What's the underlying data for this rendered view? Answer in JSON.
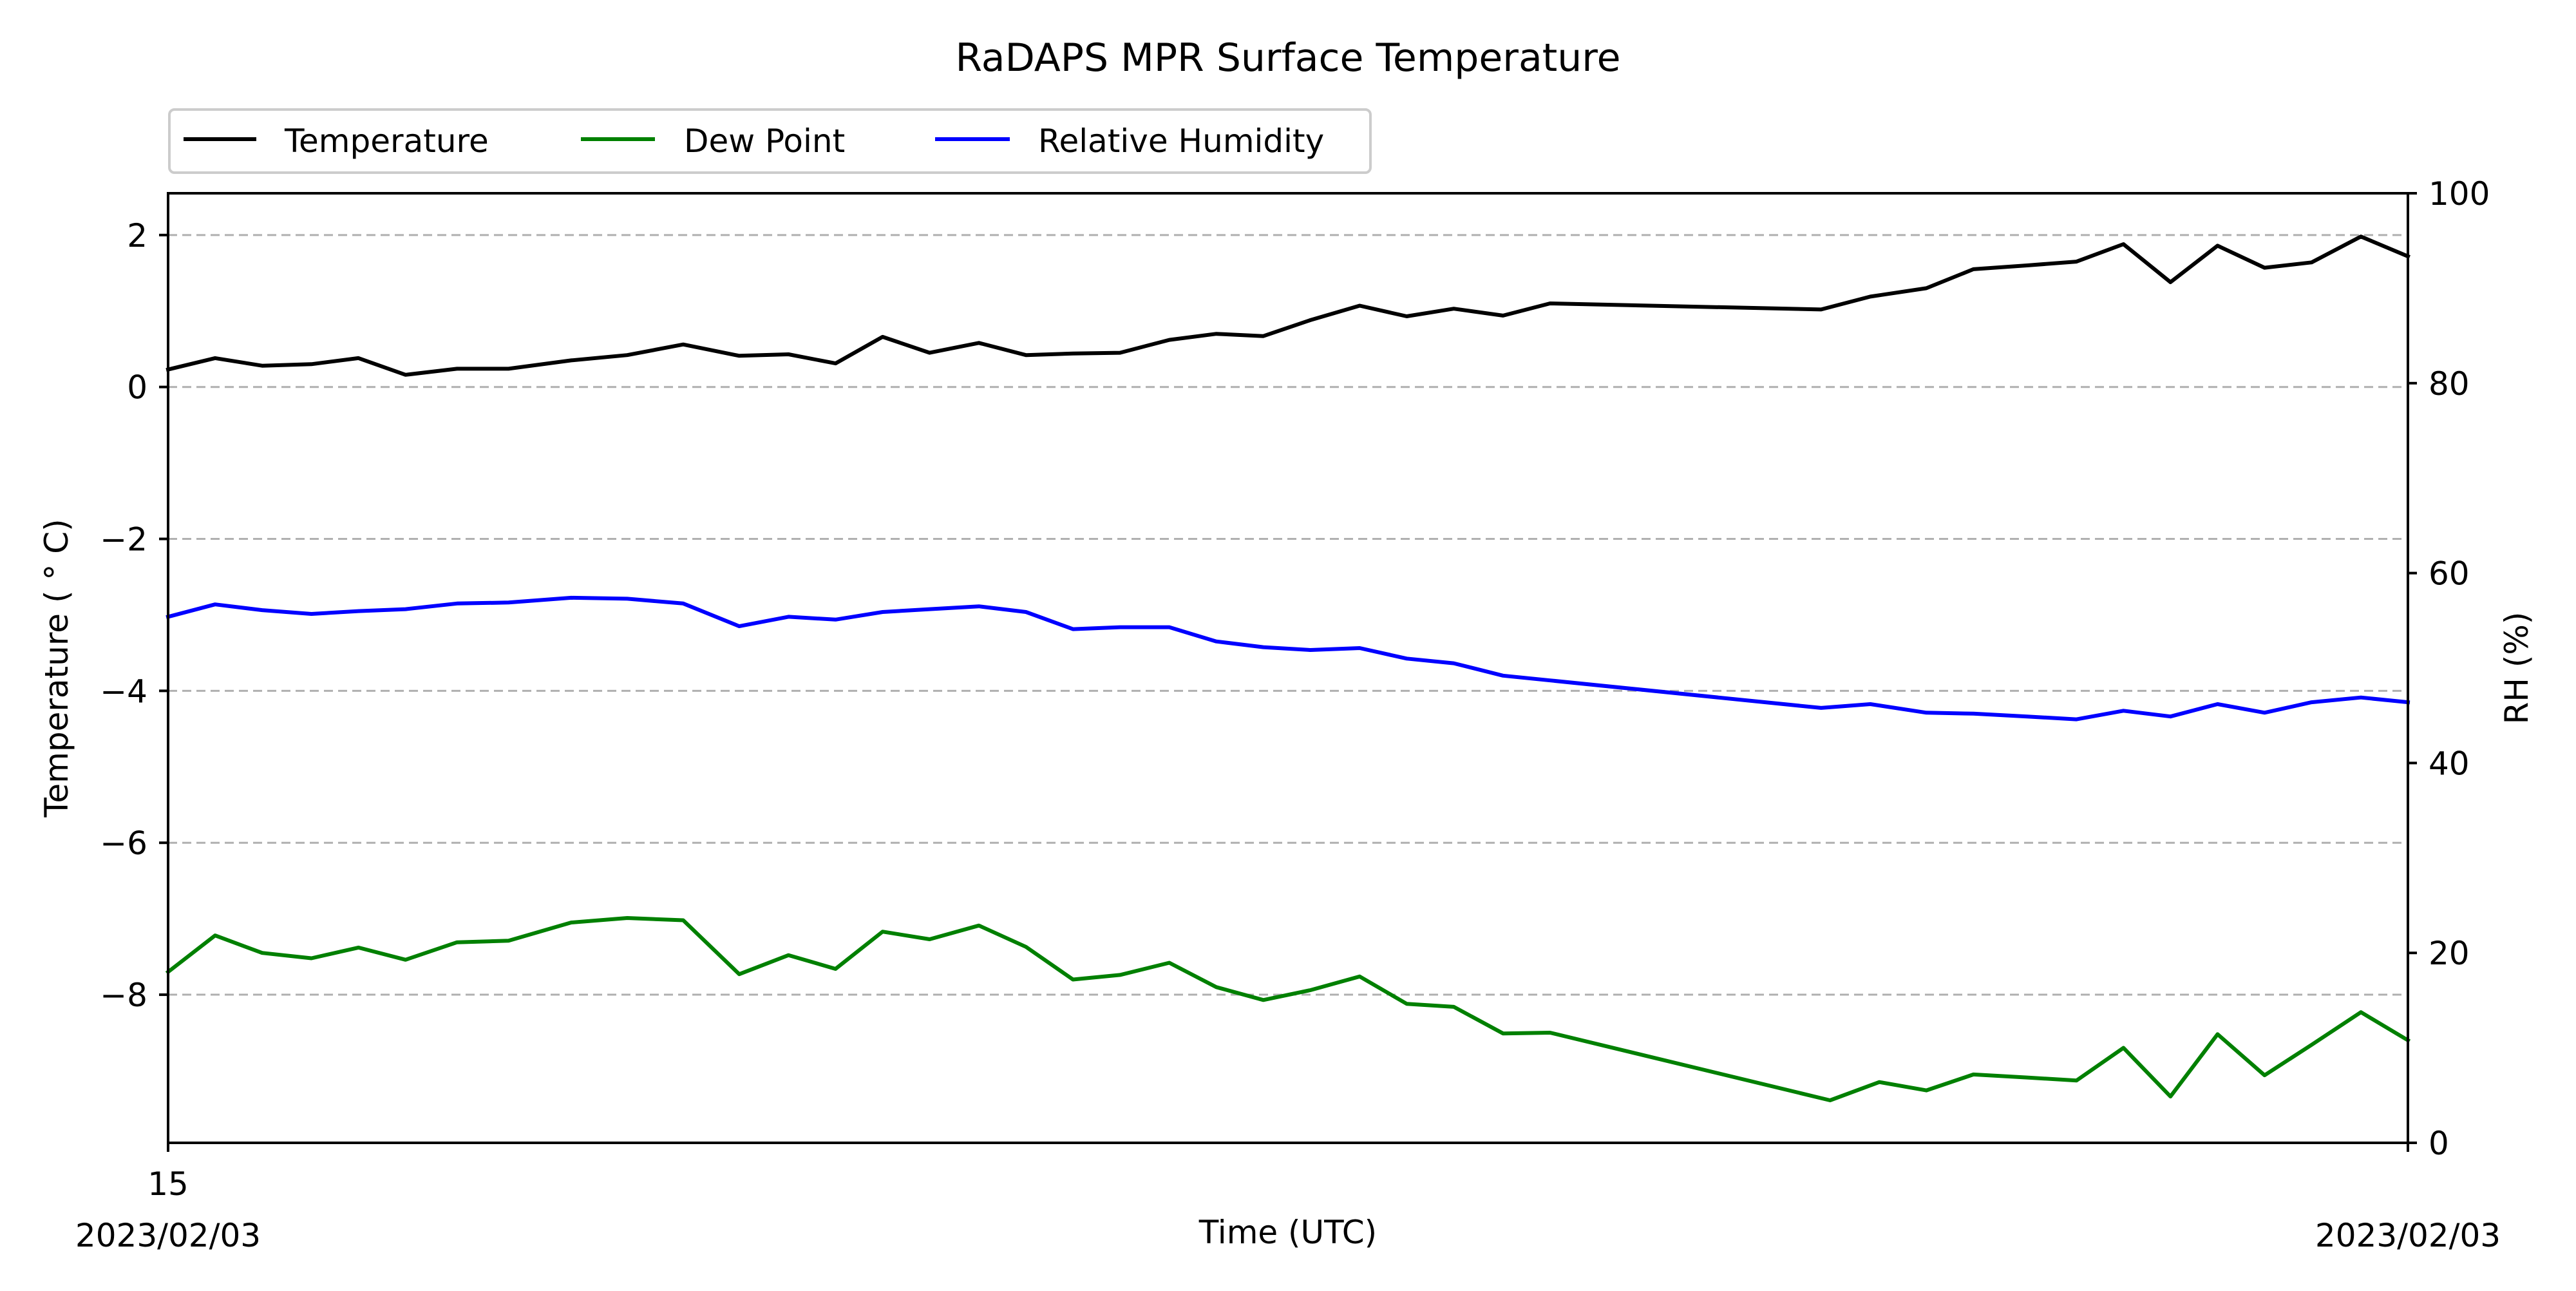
{
  "chart_data": {
    "type": "line",
    "title": "RaDAPS MPR Surface Temperature",
    "xlabel": "Time (UTC)",
    "ylabel_left": "Temperature ( ° C)",
    "ylabel_right": "RH (%)",
    "x_start_date": "2023/02/03",
    "x_end_date": "2023/02/03",
    "x_start_tick": "15",
    "ylim_left": [
      -9.95,
      2.55
    ],
    "ylim_right": [
      0,
      100
    ],
    "yticks_left": [
      "2",
      "0",
      "−2",
      "−4",
      "−6",
      "−8"
    ],
    "yticks_left_values": [
      2,
      0,
      -2,
      -4,
      -6,
      -8
    ],
    "yticks_right": [
      "100",
      "80",
      "60",
      "40",
      "20",
      "0"
    ],
    "yticks_right_values": [
      100,
      80,
      60,
      40,
      20,
      0
    ],
    "grid": "dashed horizontal at left-axis major ticks",
    "legend_position": "above-left",
    "colors": {
      "temperature": "#000000",
      "dew_point": "#008000",
      "relative_humidity": "#0000ff",
      "grid": "#b0b0b0"
    },
    "series": [
      {
        "name": "Temperature",
        "axis": "left",
        "color": "#000000",
        "points": [
          [
            0.0,
            0.23
          ],
          [
            0.021,
            0.38
          ],
          [
            0.042,
            0.28
          ],
          [
            0.064,
            0.3
          ],
          [
            0.085,
            0.38
          ],
          [
            0.106,
            0.16
          ],
          [
            0.129,
            0.24
          ],
          [
            0.152,
            0.24
          ],
          [
            0.18,
            0.35
          ],
          [
            0.205,
            0.42
          ],
          [
            0.23,
            0.56
          ],
          [
            0.255,
            0.41
          ],
          [
            0.277,
            0.43
          ],
          [
            0.298,
            0.31
          ],
          [
            0.319,
            0.66
          ],
          [
            0.34,
            0.45
          ],
          [
            0.362,
            0.58
          ],
          [
            0.383,
            0.42
          ],
          [
            0.404,
            0.44
          ],
          [
            0.425,
            0.45
          ],
          [
            0.447,
            0.62
          ],
          [
            0.468,
            0.7
          ],
          [
            0.489,
            0.67
          ],
          [
            0.51,
            0.88
          ],
          [
            0.532,
            1.07
          ],
          [
            0.553,
            0.93
          ],
          [
            0.574,
            1.03
          ],
          [
            0.596,
            0.94
          ],
          [
            0.617,
            1.1
          ],
          [
            0.738,
            1.02
          ],
          [
            0.76,
            1.19
          ],
          [
            0.785,
            1.3
          ],
          [
            0.806,
            1.55
          ],
          [
            0.83,
            1.6
          ],
          [
            0.852,
            1.65
          ],
          [
            0.873,
            1.88
          ],
          [
            0.894,
            1.38
          ],
          [
            0.915,
            1.86
          ],
          [
            0.936,
            1.57
          ],
          [
            0.957,
            1.64
          ],
          [
            0.979,
            1.98
          ],
          [
            1.0,
            1.72
          ]
        ]
      },
      {
        "name": "Dew Point",
        "axis": "left",
        "color": "#008000",
        "points": [
          [
            0.0,
            -7.7
          ],
          [
            0.021,
            -7.22
          ],
          [
            0.042,
            -7.45
          ],
          [
            0.064,
            -7.52
          ],
          [
            0.085,
            -7.38
          ],
          [
            0.106,
            -7.54
          ],
          [
            0.129,
            -7.31
          ],
          [
            0.152,
            -7.29
          ],
          [
            0.18,
            -7.05
          ],
          [
            0.205,
            -6.99
          ],
          [
            0.23,
            -7.02
          ],
          [
            0.255,
            -7.73
          ],
          [
            0.277,
            -7.48
          ],
          [
            0.298,
            -7.66
          ],
          [
            0.319,
            -7.17
          ],
          [
            0.34,
            -7.27
          ],
          [
            0.362,
            -7.09
          ],
          [
            0.383,
            -7.37
          ],
          [
            0.404,
            -7.8
          ],
          [
            0.425,
            -7.74
          ],
          [
            0.447,
            -7.58
          ],
          [
            0.468,
            -7.9
          ],
          [
            0.489,
            -8.07
          ],
          [
            0.51,
            -7.94
          ],
          [
            0.532,
            -7.76
          ],
          [
            0.553,
            -8.12
          ],
          [
            0.574,
            -8.16
          ],
          [
            0.596,
            -8.51
          ],
          [
            0.617,
            -8.5
          ],
          [
            0.742,
            -9.39
          ],
          [
            0.764,
            -9.15
          ],
          [
            0.785,
            -9.26
          ],
          [
            0.806,
            -9.05
          ],
          [
            0.83,
            -9.09
          ],
          [
            0.852,
            -9.13
          ],
          [
            0.873,
            -8.7
          ],
          [
            0.894,
            -9.34
          ],
          [
            0.915,
            -8.52
          ],
          [
            0.936,
            -9.06
          ],
          [
            0.957,
            -8.66
          ],
          [
            0.979,
            -8.23
          ],
          [
            1.0,
            -8.6
          ]
        ]
      },
      {
        "name": "Relative Humidity",
        "axis": "right",
        "color": "#0000ff",
        "points": [
          [
            0.0,
            55.4
          ],
          [
            0.021,
            56.7
          ],
          [
            0.042,
            56.1
          ],
          [
            0.064,
            55.7
          ],
          [
            0.085,
            56.0
          ],
          [
            0.106,
            56.2
          ],
          [
            0.129,
            56.8
          ],
          [
            0.152,
            56.9
          ],
          [
            0.18,
            57.4
          ],
          [
            0.205,
            57.3
          ],
          [
            0.23,
            56.8
          ],
          [
            0.255,
            54.4
          ],
          [
            0.277,
            55.4
          ],
          [
            0.298,
            55.1
          ],
          [
            0.319,
            55.9
          ],
          [
            0.34,
            56.2
          ],
          [
            0.362,
            56.5
          ],
          [
            0.383,
            55.9
          ],
          [
            0.404,
            54.1
          ],
          [
            0.425,
            54.3
          ],
          [
            0.447,
            54.3
          ],
          [
            0.468,
            52.8
          ],
          [
            0.489,
            52.2
          ],
          [
            0.51,
            51.9
          ],
          [
            0.532,
            52.1
          ],
          [
            0.553,
            51.0
          ],
          [
            0.574,
            50.5
          ],
          [
            0.596,
            49.2
          ],
          [
            0.617,
            48.7
          ],
          [
            0.738,
            45.8
          ],
          [
            0.76,
            46.2
          ],
          [
            0.785,
            45.3
          ],
          [
            0.806,
            45.2
          ],
          [
            0.83,
            44.9
          ],
          [
            0.852,
            44.6
          ],
          [
            0.873,
            45.5
          ],
          [
            0.894,
            44.9
          ],
          [
            0.915,
            46.2
          ],
          [
            0.936,
            45.3
          ],
          [
            0.957,
            46.4
          ],
          [
            0.979,
            46.9
          ],
          [
            1.0,
            46.4
          ]
        ]
      }
    ]
  }
}
